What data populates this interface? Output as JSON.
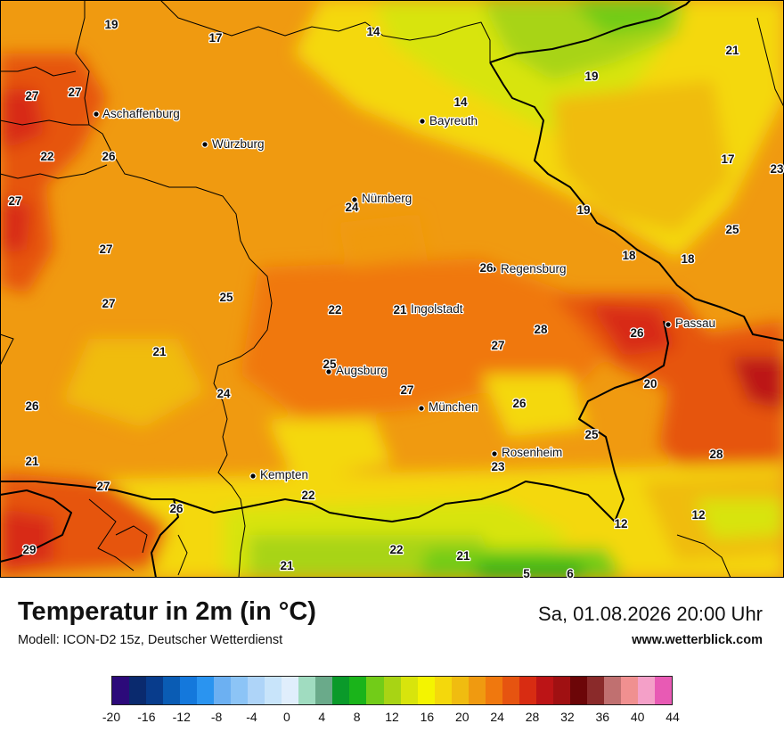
{
  "map": {
    "cities": [
      {
        "name": "Aschaffenburg"
      },
      {
        "name": "Würzburg"
      },
      {
        "name": "Bayreuth"
      },
      {
        "name": "Nürnberg"
      },
      {
        "name": "Regensburg"
      },
      {
        "name": "Ingolstadt"
      },
      {
        "name": "Passau"
      },
      {
        "name": "Augsburg"
      },
      {
        "name": "München"
      },
      {
        "name": "Rosenheim"
      },
      {
        "name": "Kempten"
      }
    ],
    "values": [
      "19",
      "17",
      "14",
      "21",
      "27",
      "27",
      "14",
      "19",
      "22",
      "26",
      "17",
      "23",
      "27",
      "24",
      "19",
      "25",
      "27",
      "26",
      "18",
      "18",
      "27",
      "25",
      "22",
      "21",
      "21",
      "27",
      "28",
      "26",
      "25",
      "24",
      "27",
      "20",
      "26",
      "26",
      "25",
      "28",
      "21",
      "23",
      "27",
      "22",
      "26",
      "12",
      "12",
      "29",
      "22",
      "21",
      "21",
      "5",
      "6"
    ]
  },
  "header": {
    "title": "Temperatur in 2m (in °C)",
    "subtitle": "Modell: ICON-D2 15z, Deutscher Wetterdienst",
    "datetime": "Sa, 01.08.2026 20:00 Uhr",
    "website": "www.wetterblick.com"
  },
  "legend": {
    "colors": [
      "#2c0a7a",
      "#0a2a6e",
      "#083c8c",
      "#0a5cb4",
      "#1478dc",
      "#2a94f0",
      "#6cb0f2",
      "#8cc4f6",
      "#aed4f8",
      "#c8e4fa",
      "#e0eefc",
      "#a0dcc0",
      "#6aaa8a",
      "#0a9a2a",
      "#1ab41a",
      "#72cc18",
      "#a8d414",
      "#d8e40c",
      "#f4f400",
      "#f4d80c",
      "#f0bc10",
      "#f09a10",
      "#f0780e",
      "#e65410",
      "#d82c12",
      "#bc1416",
      "#a01012",
      "#6c0608",
      "#8a2a2a",
      "#c07070",
      "#f09090",
      "#f4a0c8",
      "#e85ab4"
    ],
    "ticks": [
      "-20",
      "-16",
      "-12",
      "-8",
      "-4",
      "0",
      "4",
      "8",
      "12",
      "16",
      "20",
      "24",
      "28",
      "32",
      "36",
      "40",
      "44"
    ]
  }
}
